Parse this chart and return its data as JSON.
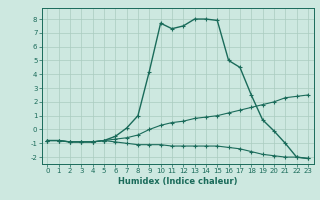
{
  "xlabel": "Humidex (Indice chaleur)",
  "ylabel": "",
  "xlim": [
    -0.5,
    23.5
  ],
  "ylim": [
    -2.5,
    8.8
  ],
  "xticks": [
    0,
    1,
    2,
    3,
    4,
    5,
    6,
    7,
    8,
    9,
    10,
    11,
    12,
    13,
    14,
    15,
    16,
    17,
    18,
    19,
    20,
    21,
    22,
    23
  ],
  "yticks": [
    -2,
    -1,
    0,
    1,
    2,
    3,
    4,
    5,
    6,
    7,
    8
  ],
  "background_color": "#cde8e0",
  "grid_color": "#aaccbf",
  "line_color": "#1a6b5a",
  "line1_x": [
    0,
    1,
    2,
    3,
    4,
    5,
    6,
    7,
    8,
    9,
    10,
    11,
    12,
    13,
    14,
    15,
    16,
    17,
    18,
    19,
    20,
    21,
    22,
    23
  ],
  "line1_y": [
    -0.8,
    -0.8,
    -0.9,
    -0.9,
    -0.9,
    -0.8,
    -0.5,
    0.1,
    1.0,
    4.2,
    7.7,
    7.3,
    7.5,
    8.0,
    8.0,
    7.9,
    5.0,
    4.5,
    2.5,
    0.7,
    -0.1,
    -1.0,
    -2.0,
    -2.1
  ],
  "line2_x": [
    0,
    1,
    2,
    3,
    4,
    5,
    6,
    7,
    8,
    9,
    10,
    11,
    12,
    13,
    14,
    15,
    16,
    17,
    18,
    19,
    20,
    21,
    22,
    23
  ],
  "line2_y": [
    -0.8,
    -0.8,
    -0.9,
    -0.9,
    -0.9,
    -0.8,
    -0.7,
    -0.6,
    -0.4,
    0.0,
    0.3,
    0.5,
    0.6,
    0.8,
    0.9,
    1.0,
    1.2,
    1.4,
    1.6,
    1.8,
    2.0,
    2.3,
    2.4,
    2.5
  ],
  "line3_x": [
    0,
    1,
    2,
    3,
    4,
    5,
    6,
    7,
    8,
    9,
    10,
    11,
    12,
    13,
    14,
    15,
    16,
    17,
    18,
    19,
    20,
    21,
    22,
    23
  ],
  "line3_y": [
    -0.8,
    -0.8,
    -0.9,
    -0.9,
    -0.9,
    -0.8,
    -0.9,
    -1.0,
    -1.1,
    -1.1,
    -1.1,
    -1.2,
    -1.2,
    -1.2,
    -1.2,
    -1.2,
    -1.3,
    -1.4,
    -1.6,
    -1.8,
    -1.9,
    -2.0,
    -2.0,
    -2.1
  ],
  "figsize": [
    3.2,
    2.0
  ],
  "dpi": 100,
  "linewidth1": 1.0,
  "linewidth2": 0.8,
  "markersize": 3.0,
  "tick_fontsize": 5.0,
  "xlabel_fontsize": 6.0
}
